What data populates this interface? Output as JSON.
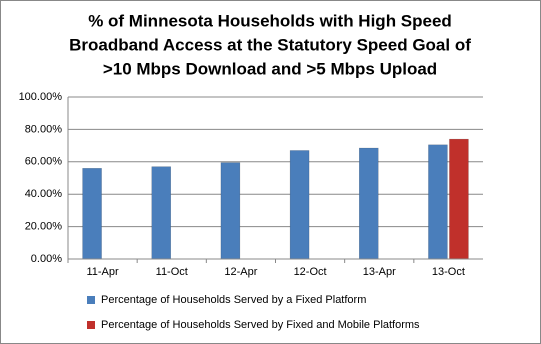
{
  "chart_data": {
    "type": "bar",
    "title": [
      "% of Minnesota Households with High Speed",
      "Broadband Access at the Statutory Speed Goal of",
      ">10 Mbps Download and >5 Mbps Upload"
    ],
    "categories": [
      "11-Apr",
      "11-Oct",
      "12-Apr",
      "12-Oct",
      "13-Apr",
      "13-Oct"
    ],
    "series": [
      {
        "name": "Percentage of Households Served by a Fixed Platform",
        "color": "#4a7ebb",
        "values": [
          56,
          57,
          59.5,
          67,
          68.5,
          70.5
        ]
      },
      {
        "name": "Percentage of Households Served by Fixed and Mobile Platforms",
        "color": "#c0302b",
        "values": [
          null,
          null,
          null,
          null,
          null,
          74
        ]
      }
    ],
    "ylim": [
      0,
      100
    ],
    "yticks": [
      {
        "value": 0,
        "label": "0.00%"
      },
      {
        "value": 20,
        "label": "20.00%"
      },
      {
        "value": 40,
        "label": "40.00%"
      },
      {
        "value": 60,
        "label": "60.00%"
      },
      {
        "value": 80,
        "label": "80.00%"
      },
      {
        "value": 100,
        "label": "100.00%"
      }
    ],
    "grid": true
  }
}
